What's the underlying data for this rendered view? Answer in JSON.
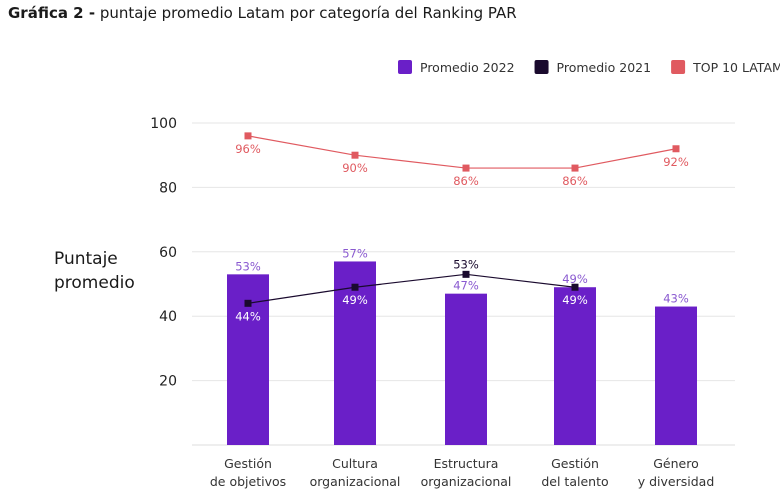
{
  "title_bold": "Gráfica 2 -",
  "title_rest": " puntaje promedio Latam por categoría del Ranking PAR",
  "chart_data": {
    "type": "bar",
    "ylabel": [
      "Puntaje",
      "promedio"
    ],
    "ylim": [
      0,
      100
    ],
    "yticks": [
      20,
      40,
      60,
      80,
      100
    ],
    "grid": true,
    "legend_position": "top-right",
    "categories": [
      [
        "Gestión",
        "de objetivos"
      ],
      [
        "Cultura",
        "organizacional"
      ],
      [
        "Estructura",
        "organizacional"
      ],
      [
        "Gestión",
        "del talento"
      ],
      [
        "Género",
        "y diversidad"
      ]
    ],
    "series": [
      {
        "name": "Promedio 2022",
        "kind": "bar",
        "color": "#6a1fc8",
        "label_color": "#8a5ad0",
        "values": [
          53,
          57,
          47,
          49,
          43
        ]
      },
      {
        "name": "Promedio 2021",
        "kind": "line",
        "color": "#1a0a2e",
        "values": [
          44,
          49,
          53,
          49,
          null
        ]
      },
      {
        "name": "TOP 10 LATAM",
        "kind": "line",
        "color": "#e05a60",
        "values": [
          96,
          90,
          86,
          86,
          92
        ]
      }
    ]
  }
}
